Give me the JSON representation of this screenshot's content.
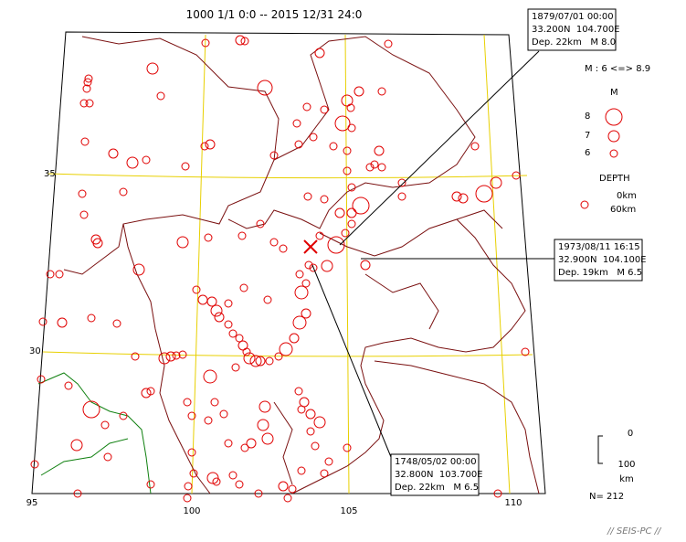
{
  "header": {
    "title": "1000 1/1 0:0 -- 2015 12/31 24:0"
  },
  "map": {
    "latitude_labels": [
      "35",
      "30"
    ],
    "longitude_labels": [
      "95",
      "100",
      "105",
      "110"
    ]
  },
  "legend": {
    "magnitude_range": "M : 6 <=> 8.9",
    "magnitude_title": "M",
    "magnitudes": [
      "8",
      "7",
      "6"
    ],
    "depth_title": "DEPTH",
    "depths": [
      "0km",
      "60km"
    ]
  },
  "callouts": [
    {
      "lines": [
        "1879/07/01 00:00",
        "33.200N  104.700E",
        "Dep. 22km   M 8.0"
      ]
    },
    {
      "lines": [
        "1973/08/11 16:15",
        "32.900N  104.100E",
        "Dep. 19km   M 6.5"
      ]
    },
    {
      "lines": [
        "1748/05/02 00:00",
        "32.800N  103.700E",
        "Dep. 22km   M 6.5"
      ]
    }
  ],
  "scale": {
    "top": "0",
    "bottom": "100",
    "unit": "km"
  },
  "count": "N= 212",
  "footer": "// SEIS-PC //"
}
